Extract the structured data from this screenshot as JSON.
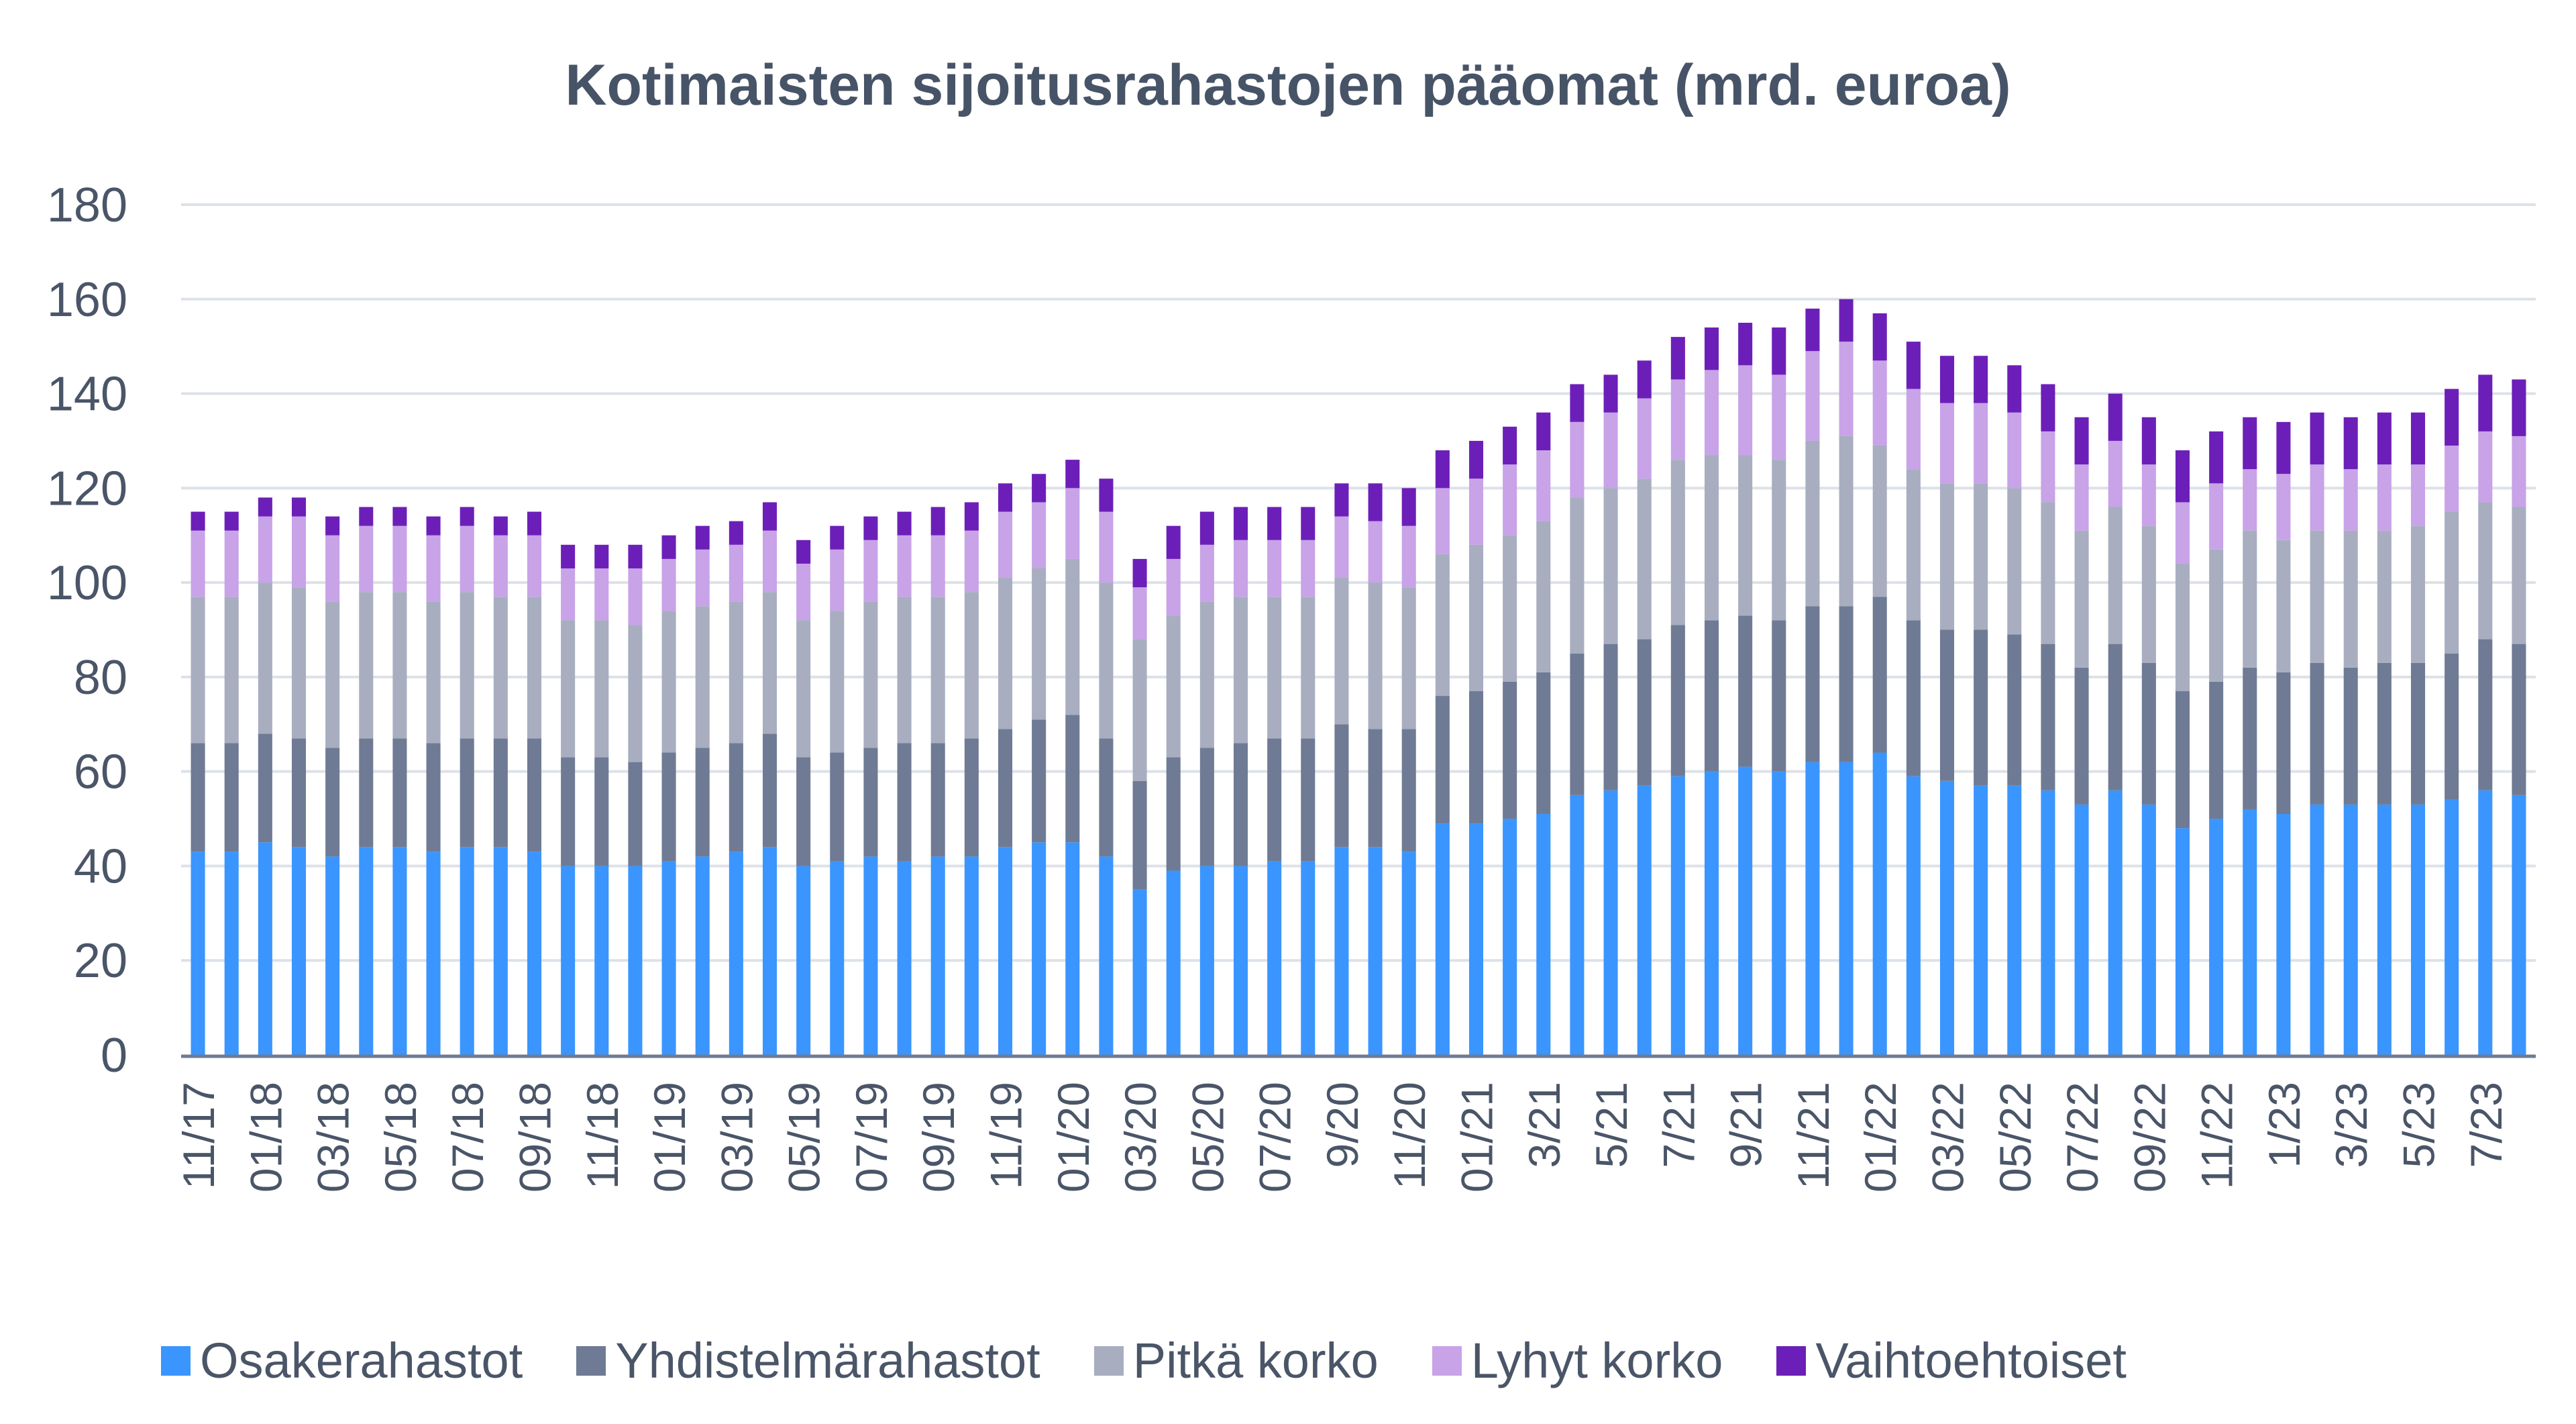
{
  "chart_data": {
    "type": "bar",
    "stacked": true,
    "title": "Kotimaisten sijoitusrahastojen pääomat (mrd. euroa)",
    "xlabel": "",
    "ylabel": "",
    "ylim": [
      0,
      180
    ],
    "yticks": [
      0,
      20,
      40,
      60,
      80,
      100,
      120,
      140,
      160,
      180
    ],
    "grid": true,
    "legend_position": "bottom",
    "categories": [
      "11/17",
      "12/17",
      "01/18",
      "02/18",
      "03/18",
      "04/18",
      "05/18",
      "06/18",
      "07/18",
      "08/18",
      "09/18",
      "10/18",
      "11/18",
      "12/18",
      "01/19",
      "02/19",
      "03/19",
      "04/19",
      "05/19",
      "06/19",
      "07/19",
      "08/19",
      "09/19",
      "10/19",
      "11/19",
      "12/19",
      "01/20",
      "02/20",
      "03/20",
      "04/20",
      "05/20",
      "06/20",
      "07/20",
      "08/20",
      "9/20",
      "10/20",
      "11/20",
      "12/20",
      "01/21",
      "02/21",
      "3/21",
      "4/21",
      "5/21",
      "6/21",
      "7/21",
      "8/21",
      "9/21",
      "10/21",
      "11/21",
      "12/21",
      "01/22",
      "02/22",
      "03/22",
      "04/22",
      "05/22",
      "06/22",
      "07/22",
      "08/22",
      "09/22",
      "10/22",
      "11/22",
      "12/22",
      "1/23",
      "2/23",
      "3/23",
      "4/23",
      "5/23",
      "6/23",
      "7/23",
      "8/23"
    ],
    "tick_labels": [
      "11/17",
      "01/18",
      "03/18",
      "05/18",
      "07/18",
      "09/18",
      "11/18",
      "01/19",
      "03/19",
      "05/19",
      "07/19",
      "09/19",
      "11/19",
      "01/20",
      "03/20",
      "05/20",
      "07/20",
      "9/20",
      "11/20",
      "01/21",
      "3/21",
      "5/21",
      "7/21",
      "9/21",
      "11/21",
      "01/22",
      "03/22",
      "05/22",
      "07/22",
      "09/22",
      "11/22",
      "1/23",
      "3/23",
      "5/23",
      "7/23"
    ],
    "series": [
      {
        "name": "Osakerahastot",
        "color": "#3a95ff",
        "values": [
          43,
          43,
          45,
          44,
          42,
          44,
          44,
          43,
          44,
          44,
          43,
          40,
          40,
          40,
          41,
          42,
          43,
          44,
          40,
          41,
          42,
          41,
          42,
          42,
          44,
          45,
          45,
          42,
          35,
          39,
          40,
          40,
          41,
          41,
          44,
          44,
          43,
          49,
          49,
          50,
          51,
          55,
          56,
          57,
          59,
          60,
          61,
          60,
          62,
          62,
          64,
          59,
          58,
          57,
          57,
          56,
          53,
          56,
          53,
          48,
          50,
          52,
          51,
          53,
          53,
          53,
          53,
          54,
          56,
          55
        ]
      },
      {
        "name": "Yhdistelmärahastot",
        "color": "#6f7b94",
        "values": [
          23,
          23,
          23,
          23,
          23,
          23,
          23,
          23,
          23,
          23,
          24,
          23,
          23,
          22,
          23,
          23,
          23,
          24,
          23,
          23,
          23,
          25,
          24,
          25,
          25,
          26,
          27,
          25,
          23,
          24,
          25,
          26,
          26,
          26,
          26,
          25,
          26,
          27,
          28,
          29,
          30,
          30,
          31,
          31,
          32,
          32,
          32,
          32,
          33,
          33,
          33,
          33,
          32,
          33,
          32,
          31,
          29,
          31,
          30,
          29,
          29,
          30,
          30,
          30,
          29,
          30,
          30,
          31,
          32,
          32
        ]
      },
      {
        "name": "Pitkä korko",
        "color": "#a8aec0",
        "values": [
          31,
          31,
          32,
          32,
          31,
          31,
          31,
          30,
          31,
          30,
          30,
          29,
          29,
          29,
          30,
          30,
          30,
          30,
          29,
          30,
          31,
          31,
          31,
          31,
          32,
          32,
          33,
          33,
          30,
          30,
          31,
          31,
          30,
          30,
          31,
          31,
          30,
          30,
          31,
          31,
          32,
          33,
          33,
          34,
          35,
          35,
          34,
          34,
          35,
          36,
          32,
          32,
          31,
          31,
          31,
          30,
          29,
          29,
          29,
          27,
          28,
          29,
          28,
          28,
          29,
          28,
          29,
          30,
          29,
          29
        ]
      },
      {
        "name": "Lyhyt korko",
        "color": "#c8a3e8",
        "values": [
          14,
          14,
          14,
          15,
          14,
          14,
          14,
          14,
          14,
          13,
          13,
          11,
          11,
          12,
          11,
          12,
          12,
          13,
          12,
          13,
          13,
          13,
          13,
          13,
          14,
          14,
          15,
          15,
          11,
          12,
          12,
          12,
          12,
          12,
          13,
          13,
          13,
          14,
          14,
          15,
          15,
          16,
          16,
          17,
          17,
          18,
          19,
          18,
          19,
          20,
          18,
          17,
          17,
          17,
          16,
          15,
          14,
          14,
          13,
          13,
          14,
          13,
          14,
          14,
          13,
          14,
          13,
          14,
          15,
          15
        ]
      },
      {
        "name": "Vaihtoehtoiset",
        "color": "#6c1fb8",
        "values": [
          4,
          4,
          4,
          4,
          4,
          4,
          4,
          4,
          4,
          4,
          5,
          5,
          5,
          5,
          5,
          5,
          5,
          6,
          5,
          5,
          5,
          5,
          6,
          6,
          6,
          6,
          6,
          7,
          6,
          7,
          7,
          7,
          7,
          7,
          7,
          8,
          8,
          8,
          8,
          8,
          8,
          8,
          8,
          8,
          9,
          9,
          9,
          10,
          9,
          9,
          10,
          10,
          10,
          10,
          10,
          10,
          10,
          10,
          10,
          11,
          11,
          11,
          11,
          11,
          11,
          11,
          11,
          12,
          12,
          12
        ]
      }
    ]
  }
}
